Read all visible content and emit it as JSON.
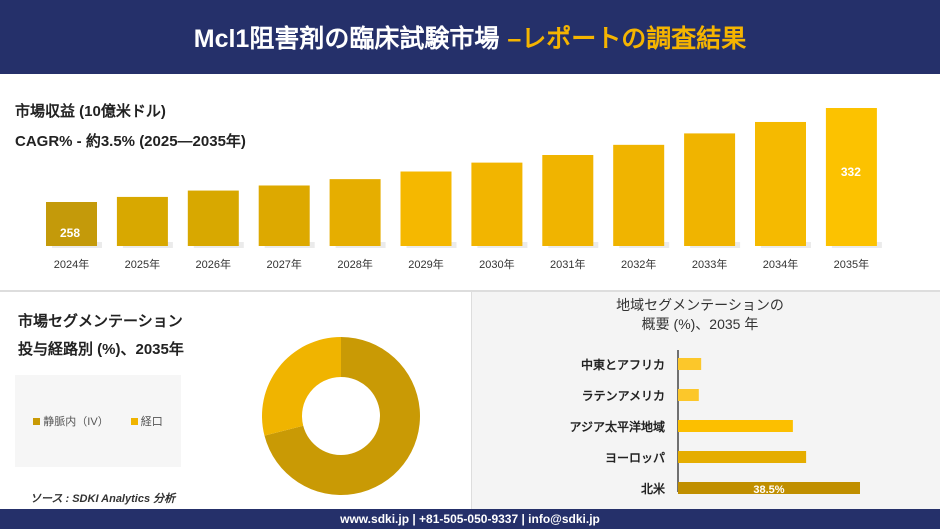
{
  "header": {
    "title": "Mcl1阻害剤の臨床試験市場",
    "subtitle": "–レポートの調査結果"
  },
  "revenue": {
    "label": "市場収益 (10億米ドル)",
    "cagr": "CAGR% - 約3.5% (2025—2035年)"
  },
  "chart_data": [
    {
      "type": "bar",
      "categories": [
        "2024年",
        "2025年",
        "2026年",
        "2027年",
        "2028年",
        "2029年",
        "2030年",
        "2031年",
        "2032年",
        "2033年",
        "2034年",
        "2035年"
      ],
      "values": [
        258,
        262,
        267,
        271,
        276,
        282,
        289,
        295,
        303,
        312,
        321,
        332
      ],
      "data_labels": {
        "0": "258",
        "11": "332"
      },
      "colors": [
        "#c49a0a",
        "#d8a800",
        "#d8a800",
        "#dda900",
        "#e6ae00",
        "#f5b800",
        "#f2b500",
        "#f0b400",
        "#f0b400",
        "#f0b400",
        "#f5ba00",
        "#fcc200"
      ]
    },
    {
      "type": "pie",
      "subtype": "donut",
      "title": "市場セグメンテーション",
      "subtitle": "投与経路別 (%)、2035年",
      "labels": [
        "静脈内（IV）",
        "経口"
      ],
      "values": [
        71,
        29
      ],
      "colors": [
        "#c99a05",
        "#f0b400"
      ],
      "legend": "left"
    },
    {
      "type": "bar",
      "orientation": "horizontal",
      "title": "地域セグメンテーションの",
      "subtitle": "概要 (%)、2035 年",
      "categories": [
        "中東とアフリカ",
        "ラテンアメリカ",
        "アジア太平洋地域",
        "ヨーロッパ",
        "北米"
      ],
      "values": [
        4.9,
        4.4,
        24.3,
        27.1,
        38.5
      ],
      "data_labels": {
        "4": "38.5%"
      },
      "colors": [
        "#fcc72a",
        "#fcc72a",
        "#fcbf00",
        "#e5ad00",
        "#c08f00"
      ]
    }
  ],
  "source": "ソース : SDKI Analytics 分析",
  "footer": "www.sdki.jp | +81-505-050-9337 | info@sdki.jp"
}
